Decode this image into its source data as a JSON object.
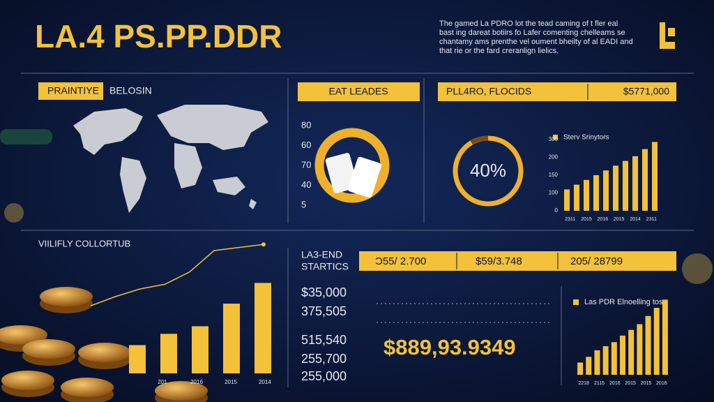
{
  "title": "LA.4 PS.PP.DDR",
  "description": [
    "The gamed La PDRO lot the tead caming of t fler eal",
    "bast ing dareat botiirs fo Lafer comenting chelleams se",
    "chantamy ams prenthe vel oument bheilty of al EADI and",
    "that rie or the fard creranlign lielics."
  ],
  "map_panel": {
    "label": "PRAINTIYE",
    "sublabel": "BELOSIN"
  },
  "ring_panel": {
    "label": "EAT LEADES",
    "ticks": [
      "80",
      "60",
      "70",
      "40",
      "5"
    ]
  },
  "donut_panel": {
    "label": "PLL4RO, FLOCIDS",
    "amount": "$5771,000",
    "center": "40%",
    "legend": "Sterv Srinytors",
    "ticks": [
      "300",
      "200",
      "150",
      "100",
      "0"
    ],
    "ylim": [
      0,
      300
    ],
    "values": [
      90,
      110,
      130,
      150,
      170,
      190,
      210,
      230,
      260,
      290
    ],
    "x_labels": [
      "2311",
      "2015",
      "2016",
      "2015",
      "2014",
      "2311"
    ]
  },
  "collect_panel": {
    "label": "VIILIFLY COLLORTUB",
    "ylim": [
      0,
      100
    ],
    "values": [
      30,
      42,
      50,
      74,
      96
    ],
    "line": [
      44,
      50,
      55,
      58,
      66,
      80,
      82,
      84
    ],
    "x_labels": [
      "201",
      "2016",
      "2015",
      "2014"
    ]
  },
  "stats_panel": {
    "label": [
      "LA3-END",
      "STARTICS"
    ],
    "cells": [
      "Ɔ55/ 2.700",
      "$59/3.748",
      "205/ 28799"
    ],
    "list": [
      "$35,000",
      "375,505",
      "515,540",
      "255,700",
      "255,000"
    ],
    "big": "$889,93.9349",
    "legend": "Las PDR Elnoelling tos",
    "ylim": [
      0,
      100
    ],
    "values": [
      15,
      22,
      30,
      35,
      40,
      48,
      55,
      62,
      72,
      82,
      92
    ],
    "x_labels": [
      "2218",
      "2115",
      "2016",
      "2015",
      "2015",
      "2016"
    ]
  }
}
